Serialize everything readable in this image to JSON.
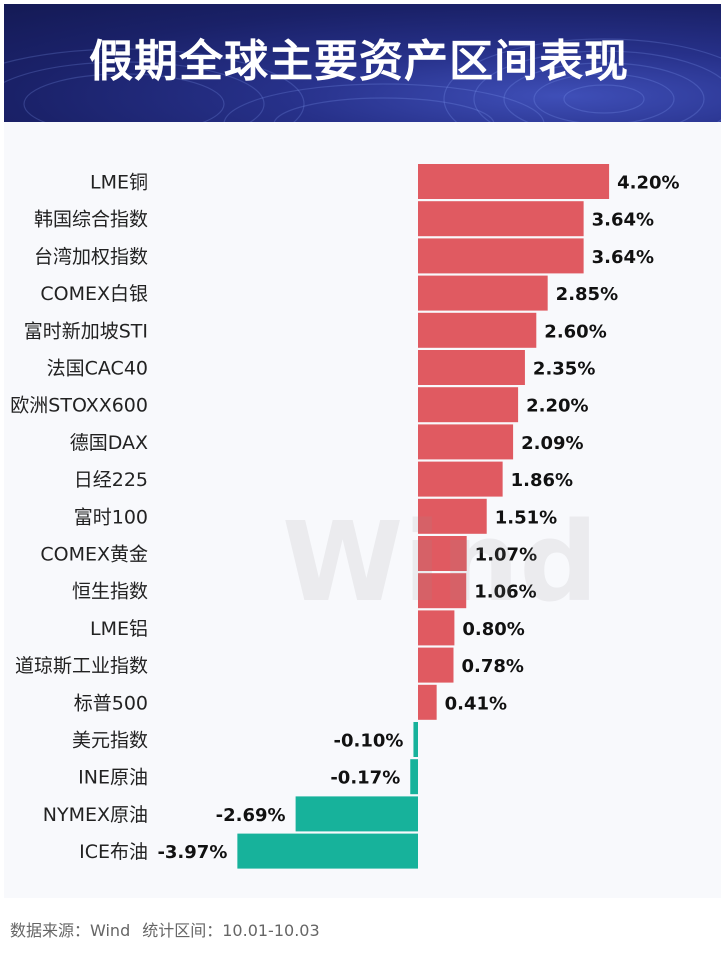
{
  "title": "假期全球主要资产区间表现",
  "footer": {
    "source_prefix": "数据来源：",
    "source": "Wind",
    "period_prefix": "统计区间：",
    "period": "10.01-10.03"
  },
  "watermark": "Wind",
  "colors": {
    "banner": "#1f2770",
    "positive": "#e05a61",
    "negative": "#17b29b",
    "panel": "#f8f9fc"
  },
  "chart_data": {
    "type": "bar",
    "orientation": "horizontal",
    "categories": [
      "LME铜",
      "韩国综合指数",
      "台湾加权指数",
      "COMEX白银",
      "富时新加坡STI",
      "法国CAC40",
      "欧洲STOXX600",
      "德国DAX",
      "日经225",
      "富时100",
      "COMEX黄金",
      "恒生指数",
      "LME铝",
      "道琼斯工业指数",
      "标普500",
      "美元指数",
      "INE原油",
      "NYMEX原油",
      "ICE布油"
    ],
    "values": [
      4.2,
      3.64,
      3.64,
      2.85,
      2.6,
      2.35,
      2.2,
      2.09,
      1.86,
      1.51,
      1.07,
      1.06,
      0.8,
      0.78,
      0.41,
      -0.1,
      -0.17,
      -2.69,
      -3.97
    ],
    "value_labels": [
      "4.20%",
      "3.64%",
      "3.64%",
      "2.85%",
      "2.60%",
      "2.35%",
      "2.20%",
      "2.09%",
      "1.86%",
      "1.51%",
      "1.07%",
      "1.06%",
      "0.80%",
      "0.78%",
      "0.41%",
      "-0.10%",
      "-0.17%",
      "-2.69%",
      "-3.97%"
    ],
    "unit": "%",
    "xlim": [
      -4.0,
      4.2
    ],
    "grid": false,
    "legend": "none"
  }
}
